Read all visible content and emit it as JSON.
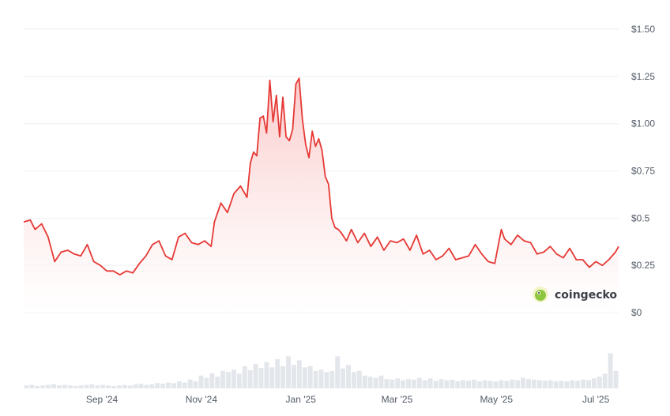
{
  "chart_data": {
    "type": "area",
    "y_unit": "USD",
    "y_tick_labels": [
      "$1.50",
      "$1.25",
      "$1.00",
      "$0.75",
      "$0.5",
      "$0.25",
      "$0"
    ],
    "y_tick_values": [
      1.5,
      1.25,
      1.0,
      0.75,
      0.5,
      0.25,
      0
    ],
    "ylim": [
      0,
      1.5
    ],
    "x_tick_labels": [
      "Sep '24",
      "Nov '24",
      "Jan '25",
      "Mar '25",
      "May '25",
      "Jul '25"
    ],
    "x_tick_dates": [
      "2024-09-01",
      "2024-11-01",
      "2025-01-01",
      "2025-03-01",
      "2025-05-01",
      "2025-07-01"
    ],
    "xlim": [
      "2024-07-15",
      "2025-07-15"
    ],
    "grid": true,
    "price_series": {
      "x": [
        "2024-07-15",
        "2024-07-19",
        "2024-07-22",
        "2024-07-26",
        "2024-07-30",
        "2024-08-03",
        "2024-08-07",
        "2024-08-11",
        "2024-08-15",
        "2024-08-19",
        "2024-08-23",
        "2024-08-27",
        "2024-08-31",
        "2024-09-04",
        "2024-09-08",
        "2024-09-12",
        "2024-09-16",
        "2024-09-20",
        "2024-09-24",
        "2024-09-28",
        "2024-10-02",
        "2024-10-06",
        "2024-10-10",
        "2024-10-14",
        "2024-10-18",
        "2024-10-22",
        "2024-10-26",
        "2024-10-30",
        "2024-11-03",
        "2024-11-07",
        "2024-11-09",
        "2024-11-13",
        "2024-11-17",
        "2024-11-21",
        "2024-11-25",
        "2024-11-29",
        "2024-12-01",
        "2024-12-03",
        "2024-12-05",
        "2024-12-07",
        "2024-12-09",
        "2024-12-11",
        "2024-12-13",
        "2024-12-15",
        "2024-12-17",
        "2024-12-19",
        "2024-12-21",
        "2024-12-23",
        "2024-12-25",
        "2024-12-27",
        "2024-12-29",
        "2024-12-31",
        "2025-01-02",
        "2025-01-04",
        "2025-01-06",
        "2025-01-08",
        "2025-01-10",
        "2025-01-12",
        "2025-01-14",
        "2025-01-16",
        "2025-01-18",
        "2025-01-20",
        "2025-01-22",
        "2025-01-24",
        "2025-01-26",
        "2025-01-29",
        "2025-02-01",
        "2025-02-05",
        "2025-02-09",
        "2025-02-13",
        "2025-02-17",
        "2025-02-21",
        "2025-02-25",
        "2025-03-01",
        "2025-03-05",
        "2025-03-09",
        "2025-03-13",
        "2025-03-17",
        "2025-03-21",
        "2025-03-25",
        "2025-03-29",
        "2025-04-02",
        "2025-04-06",
        "2025-04-10",
        "2025-04-14",
        "2025-04-18",
        "2025-04-22",
        "2025-04-26",
        "2025-04-30",
        "2025-05-04",
        "2025-05-06",
        "2025-05-10",
        "2025-05-14",
        "2025-05-18",
        "2025-05-22",
        "2025-05-26",
        "2025-05-30",
        "2025-06-03",
        "2025-06-07",
        "2025-06-11",
        "2025-06-15",
        "2025-06-19",
        "2025-06-23",
        "2025-06-27",
        "2025-07-01",
        "2025-07-05",
        "2025-07-09",
        "2025-07-13",
        "2025-07-15"
      ],
      "y": [
        0.48,
        0.49,
        0.44,
        0.47,
        0.4,
        0.27,
        0.32,
        0.33,
        0.31,
        0.3,
        0.36,
        0.27,
        0.25,
        0.22,
        0.22,
        0.2,
        0.22,
        0.21,
        0.26,
        0.3,
        0.36,
        0.38,
        0.3,
        0.28,
        0.4,
        0.42,
        0.37,
        0.36,
        0.38,
        0.35,
        0.48,
        0.58,
        0.53,
        0.63,
        0.67,
        0.61,
        0.79,
        0.85,
        0.83,
        1.03,
        1.04,
        0.95,
        1.23,
        1.01,
        1.15,
        0.93,
        1.14,
        0.93,
        0.91,
        0.97,
        1.21,
        1.24,
        1.02,
        0.89,
        0.82,
        0.96,
        0.88,
        0.92,
        0.86,
        0.72,
        0.68,
        0.5,
        0.45,
        0.44,
        0.42,
        0.38,
        0.44,
        0.37,
        0.42,
        0.35,
        0.4,
        0.33,
        0.38,
        0.37,
        0.39,
        0.33,
        0.41,
        0.31,
        0.33,
        0.28,
        0.3,
        0.34,
        0.28,
        0.29,
        0.3,
        0.36,
        0.31,
        0.27,
        0.26,
        0.44,
        0.39,
        0.36,
        0.41,
        0.38,
        0.37,
        0.31,
        0.32,
        0.35,
        0.31,
        0.29,
        0.34,
        0.28,
        0.28,
        0.24,
        0.27,
        0.25,
        0.28,
        0.32,
        0.35
      ]
    },
    "volume_series": {
      "unit": "relative",
      "values": [
        0.05,
        0.06,
        0.04,
        0.05,
        0.06,
        0.07,
        0.05,
        0.06,
        0.05,
        0.04,
        0.05,
        0.06,
        0.07,
        0.05,
        0.06,
        0.05,
        0.04,
        0.05,
        0.06,
        0.05,
        0.07,
        0.08,
        0.06,
        0.07,
        0.09,
        0.08,
        0.1,
        0.09,
        0.12,
        0.1,
        0.15,
        0.12,
        0.22,
        0.18,
        0.26,
        0.2,
        0.3,
        0.28,
        0.32,
        0.25,
        0.38,
        0.31,
        0.42,
        0.35,
        0.45,
        0.36,
        0.5,
        0.38,
        0.55,
        0.4,
        0.48,
        0.36,
        0.38,
        0.3,
        0.32,
        0.28,
        0.3,
        0.55,
        0.34,
        0.4,
        0.28,
        0.3,
        0.22,
        0.2,
        0.18,
        0.22,
        0.16,
        0.15,
        0.17,
        0.14,
        0.16,
        0.15,
        0.18,
        0.14,
        0.17,
        0.13,
        0.16,
        0.14,
        0.15,
        0.12,
        0.14,
        0.13,
        0.15,
        0.12,
        0.14,
        0.13,
        0.12,
        0.14,
        0.13,
        0.15,
        0.14,
        0.18,
        0.16,
        0.15,
        0.14,
        0.13,
        0.14,
        0.12,
        0.13,
        0.12,
        0.14,
        0.13,
        0.15,
        0.14,
        0.17,
        0.2,
        0.25,
        0.6,
        0.3
      ]
    },
    "line_color": "#e53935",
    "fill_color_top": "#fbc8c8",
    "fill_color_bottom": "#ffffff",
    "volume_color": "#e3e6ea",
    "gridline_color": "#eceef1"
  },
  "watermark": {
    "text": "coingecko",
    "icon": "gecko-logo-icon",
    "icon_color": "#8dc63f"
  }
}
